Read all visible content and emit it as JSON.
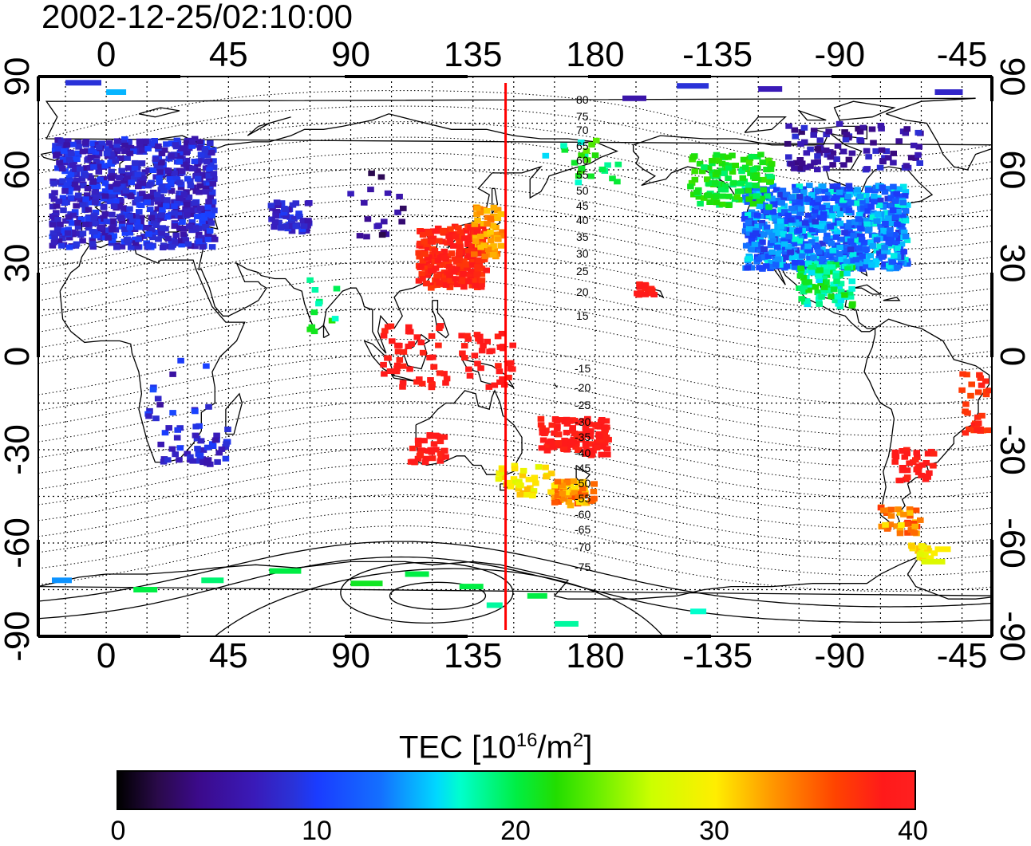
{
  "title": "2002-12-25/02:10:00",
  "lon_ticks": [
    "0",
    "45",
    "90",
    "135",
    "180",
    "-135",
    "-90",
    "-45"
  ],
  "lat_ticks": [
    "90",
    "60",
    "30",
    "0",
    "-30",
    "-60",
    "-90"
  ],
  "colorbar": {
    "label_main": "TEC  [10",
    "label_exp": "16",
    "label_unit": "/m",
    "label_exp2": "2",
    "label_end": "]",
    "ticks": [
      "0",
      "10",
      "20",
      "30",
      "40"
    ],
    "min": 0,
    "max": 40
  },
  "maglat_labels_north": [
    "80",
    "75",
    "70",
    "65",
    "60",
    "55",
    "50",
    "45",
    "40",
    "35",
    "30",
    "25",
    "20",
    "15"
  ],
  "maglat_labels_south": [
    "-15",
    "-20",
    "-25",
    "-30",
    "-35",
    "-40",
    "-45",
    "-50",
    "-55",
    "-60",
    "-65",
    "-70",
    "-75"
  ],
  "terminator_lon": 147,
  "colors": {
    "terminator": "#ff0000",
    "frame": "#000000"
  }
}
